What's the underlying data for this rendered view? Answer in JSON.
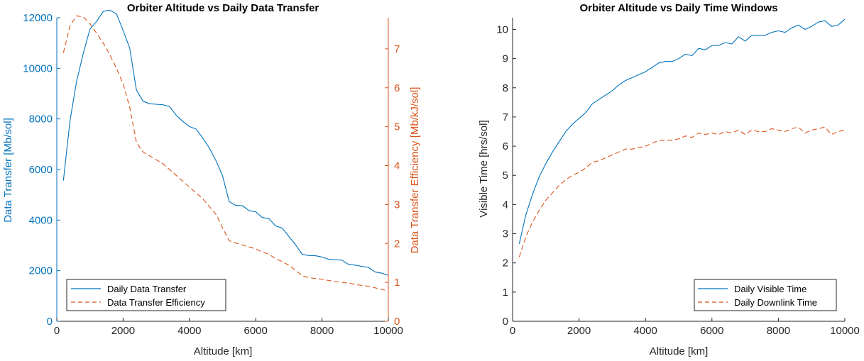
{
  "chart_data": [
    {
      "type": "line",
      "title": "Orbiter Altitude vs Daily Data Transfer",
      "xlabel": "Altitude [km]",
      "ylabel": "Data Transfer [Mb/sol]",
      "y2label": "Data Transfer Efficiency [Mb/kJ/sol]",
      "xlim": [
        0,
        10000
      ],
      "ylim": [
        0,
        12000
      ],
      "y2lim": [
        0,
        7.8
      ],
      "xticks": [
        "0",
        "2000",
        "4000",
        "6000",
        "8000",
        "10000"
      ],
      "yticks": [
        "0",
        "2000",
        "4000",
        "6000",
        "8000",
        "10000",
        "12000"
      ],
      "y2ticks": [
        "0",
        "1",
        "2",
        "3",
        "4",
        "5",
        "6",
        "7"
      ],
      "grid": false,
      "legend_position": "bottom-left",
      "colors": {
        "left_axis": "#0072BD",
        "right_axis": "#D95319"
      },
      "series": [
        {
          "name": "Daily Data Transfer",
          "axis": "left",
          "style": "solid",
          "color": "#0072BD",
          "x": [
            200,
            400,
            600,
            800,
            1000,
            1200,
            1400,
            1600,
            1800,
            2000,
            2200,
            2400,
            2600,
            2800,
            3000,
            3200,
            3400,
            3600,
            3800,
            4000,
            4200,
            4400,
            4600,
            4800,
            5000,
            5200,
            5400,
            5600,
            5800,
            6000,
            6200,
            6400,
            6600,
            6800,
            7000,
            7200,
            7400,
            7600,
            7800,
            8000,
            8200,
            8400,
            8600,
            8800,
            9000,
            9200,
            9400,
            9600,
            9800,
            10000
          ],
          "y": [
            5560,
            7950,
            9500,
            10600,
            11550,
            11850,
            12250,
            12300,
            12150,
            11500,
            10800,
            9150,
            8700,
            8600,
            8580,
            8560,
            8490,
            8150,
            7900,
            7700,
            7600,
            7250,
            6850,
            6350,
            5750,
            4730,
            4580,
            4570,
            4370,
            4330,
            4100,
            4060,
            3770,
            3680,
            3350,
            3030,
            2650,
            2600,
            2590,
            2540,
            2450,
            2430,
            2420,
            2250,
            2220,
            2170,
            2130,
            1950,
            1900,
            1820
          ]
        },
        {
          "name": "Data Transfer Efficiency",
          "axis": "right",
          "style": "dashed",
          "color": "#D95319",
          "x": [
            200,
            400,
            600,
            800,
            1000,
            1200,
            1400,
            1600,
            1800,
            2000,
            2200,
            2400,
            2600,
            2800,
            3000,
            3200,
            3400,
            3600,
            3800,
            4000,
            4200,
            4400,
            4600,
            4800,
            5000,
            5200,
            5400,
            5600,
            5800,
            6000,
            6200,
            6400,
            6600,
            6800,
            7000,
            7200,
            7400,
            7600,
            7800,
            8000,
            8200,
            8400,
            8600,
            8800,
            9000,
            9200,
            9400,
            9600,
            9800,
            10000
          ],
          "y": [
            6.9,
            7.6,
            7.85,
            7.82,
            7.65,
            7.4,
            7.15,
            6.85,
            6.5,
            6.1,
            5.5,
            4.6,
            4.35,
            4.25,
            4.15,
            4.05,
            3.9,
            3.75,
            3.6,
            3.45,
            3.3,
            3.15,
            2.95,
            2.75,
            2.4,
            2.07,
            2.01,
            1.96,
            1.91,
            1.86,
            1.78,
            1.72,
            1.61,
            1.53,
            1.44,
            1.31,
            1.17,
            1.12,
            1.1,
            1.08,
            1.05,
            1.02,
            1.0,
            0.98,
            0.95,
            0.92,
            0.9,
            0.86,
            0.82,
            0.78
          ]
        }
      ]
    },
    {
      "type": "line",
      "title": "Orbiter Altitude vs Daily Time Windows",
      "xlabel": "Altitude [km]",
      "ylabel": "Visible Time  [hrs/sol]",
      "xlim": [
        0,
        10000
      ],
      "ylim": [
        0,
        10.4
      ],
      "xticks": [
        "0",
        "2000",
        "4000",
        "6000",
        "8000",
        "10000"
      ],
      "yticks": [
        "0",
        "1",
        "2",
        "3",
        "4",
        "5",
        "6",
        "7",
        "8",
        "9",
        "10"
      ],
      "grid": false,
      "legend_position": "bottom-right",
      "series": [
        {
          "name": "Daily Visible Time",
          "style": "solid",
          "color": "#0072BD",
          "x": [
            200,
            400,
            600,
            800,
            1000,
            1200,
            1400,
            1600,
            1800,
            2000,
            2200,
            2400,
            2600,
            2800,
            3000,
            3200,
            3400,
            3600,
            3800,
            4000,
            4200,
            4400,
            4600,
            4800,
            5000,
            5200,
            5400,
            5600,
            5800,
            6000,
            6200,
            6400,
            6600,
            6800,
            7000,
            7200,
            7400,
            7600,
            7800,
            8000,
            8200,
            8400,
            8600,
            8800,
            9000,
            9200,
            9400,
            9600,
            9800,
            10000
          ],
          "y": [
            2.65,
            3.65,
            4.35,
            4.95,
            5.4,
            5.8,
            6.15,
            6.5,
            6.75,
            6.95,
            7.15,
            7.45,
            7.6,
            7.75,
            7.9,
            8.1,
            8.25,
            8.35,
            8.45,
            8.55,
            8.7,
            8.85,
            8.9,
            8.9,
            9.0,
            9.15,
            9.1,
            9.35,
            9.3,
            9.45,
            9.45,
            9.55,
            9.5,
            9.75,
            9.6,
            9.8,
            9.8,
            9.8,
            9.9,
            9.95,
            9.9,
            10.05,
            10.15,
            10.0,
            10.1,
            10.25,
            10.3,
            10.1,
            10.15,
            10.35
          ]
        },
        {
          "name": "Daily Downlink Time",
          "style": "dashed",
          "color": "#D95319",
          "x": [
            200,
            400,
            600,
            800,
            1000,
            1200,
            1400,
            1600,
            1800,
            2000,
            2200,
            2400,
            2600,
            2800,
            3000,
            3200,
            3400,
            3600,
            3800,
            4000,
            4200,
            4400,
            4600,
            4800,
            5000,
            5200,
            5400,
            5600,
            5800,
            6000,
            6200,
            6400,
            6600,
            6800,
            7000,
            7200,
            7400,
            7600,
            7800,
            8000,
            8200,
            8400,
            8600,
            8800,
            9000,
            9200,
            9400,
            9600,
            9800,
            10000
          ],
          "y": [
            2.2,
            2.9,
            3.4,
            3.8,
            4.15,
            4.4,
            4.65,
            4.85,
            5.0,
            5.1,
            5.25,
            5.45,
            5.5,
            5.6,
            5.7,
            5.8,
            5.9,
            5.9,
            5.95,
            6.0,
            6.1,
            6.2,
            6.2,
            6.2,
            6.25,
            6.35,
            6.3,
            6.45,
            6.4,
            6.45,
            6.4,
            6.5,
            6.45,
            6.55,
            6.4,
            6.55,
            6.5,
            6.5,
            6.6,
            6.55,
            6.5,
            6.6,
            6.65,
            6.45,
            6.55,
            6.6,
            6.65,
            6.4,
            6.5,
            6.55
          ]
        }
      ]
    }
  ]
}
